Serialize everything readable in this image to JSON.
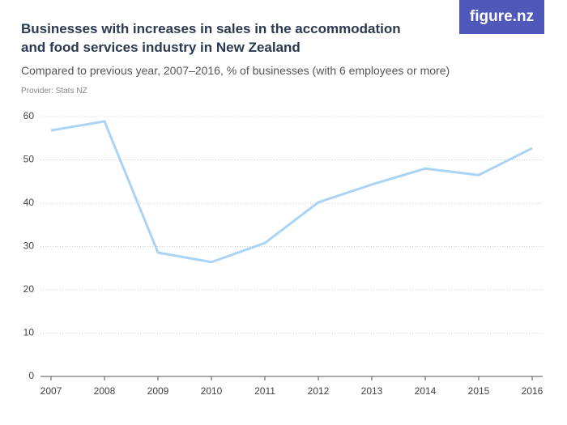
{
  "brand": "figure.nz",
  "chart_data": {
    "type": "line",
    "title": "Businesses with increases in sales in the accommodation and food services industry in New Zealand",
    "subtitle": "Compared to previous year, 2007–2016, % of businesses (with 6 employees or more)",
    "source": "Provider: Stats NZ",
    "categories": [
      "2007",
      "2008",
      "2009",
      "2010",
      "2011",
      "2012",
      "2013",
      "2014",
      "2015",
      "2016"
    ],
    "series": [
      {
        "color": "#a9d4f5",
        "values": [
          56.8,
          58.9,
          28.6,
          26.4,
          30.8,
          40.2,
          44.3,
          48.0,
          46.5,
          52.7
        ]
      }
    ],
    "ylim": [
      0,
      60
    ],
    "yticks": [
      0,
      10,
      20,
      30,
      40,
      50,
      60
    ],
    "grid": true
  }
}
